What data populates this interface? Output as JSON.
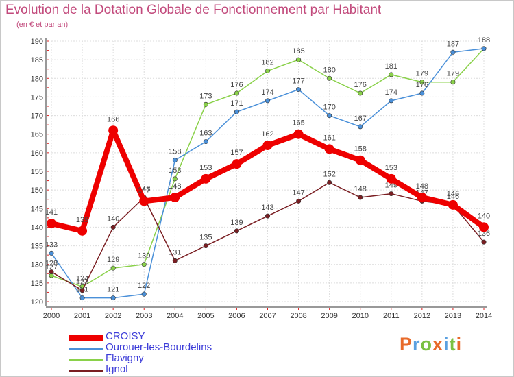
{
  "header": {
    "title": "Evolution de la Dotation Globale de Fonctionnement par Habitant",
    "subtitle": "(en € et par an)"
  },
  "logo": {
    "text": "Proxiti"
  },
  "colors": {
    "title": "#c24a7c",
    "grid": "#dcdcdc",
    "axis": "#333333",
    "ticks_red": "#e02020"
  },
  "chart_data": {
    "type": "line",
    "title": "Evolution de la Dotation Globale de Fonctionnement par Habitant",
    "subtitle": "(en € et par an)",
    "xlabel": "",
    "ylabel": "",
    "x": [
      2000,
      2001,
      2002,
      2003,
      2004,
      2005,
      2006,
      2007,
      2008,
      2009,
      2010,
      2011,
      2012,
      2013,
      2014
    ],
    "ylim": [
      120,
      190
    ],
    "yticks": [
      120,
      125,
      130,
      135,
      140,
      145,
      150,
      155,
      160,
      165,
      170,
      175,
      180,
      185,
      190
    ],
    "grid": true,
    "legend_position": "bottom-left",
    "series": [
      {
        "name": "Flavigny",
        "color": "#8ad14a",
        "values": [
          127,
          124,
          129,
          130,
          153,
          173,
          176,
          182,
          185,
          180,
          176,
          181,
          179,
          179,
          188
        ]
      },
      {
        "name": "Ourouer-les-Bourdelins",
        "color": "#4a90d9",
        "values": [
          133,
          121,
          121,
          122,
          158,
          163,
          171,
          174,
          177,
          170,
          167,
          174,
          176,
          187,
          188
        ]
      },
      {
        "name": "Ignol",
        "color": "#7a1e22",
        "values": [
          128,
          123,
          140,
          148,
          131,
          135,
          139,
          143,
          147,
          152,
          148,
          149,
          147,
          146,
          136
        ]
      },
      {
        "name": "CROISY",
        "color": "#ee0000",
        "values": [
          141,
          139,
          166,
          147,
          148,
          153,
          157,
          162,
          165,
          161,
          158,
          153,
          148,
          146,
          140
        ]
      }
    ],
    "legend": [
      {
        "name": "CROISY",
        "color": "#ee0000"
      },
      {
        "name": "Ourouer-les-Bourdelins",
        "color": "#4a90d9"
      },
      {
        "name": "Flavigny",
        "color": "#8ad14a"
      },
      {
        "name": "Ignol",
        "color": "#7a1e22"
      }
    ]
  }
}
